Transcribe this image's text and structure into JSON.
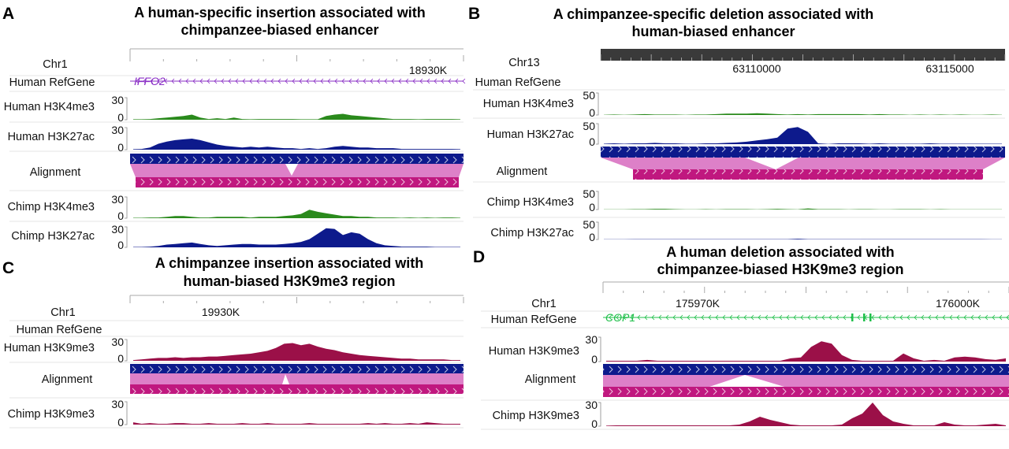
{
  "colors": {
    "h3k4me3": "#2a8a1c",
    "h3k27ac": "#0d1a8c",
    "h3k9me3": "#9b1048",
    "align_human": "#0d1a8c",
    "align_link": "#dd80c8",
    "align_chimp": "#c0187f",
    "gene_iffo2": "#8a2fc6",
    "gene_cop1": "#1fbf4a"
  },
  "panels": {
    "A": {
      "letter": "A",
      "title": [
        "A human-specific insertion associated with",
        "chimpanzee-biased enhancer"
      ],
      "chrom": "Chr1",
      "ruler_labels": [
        "18930K"
      ],
      "refgene_label": "Human RefGene",
      "gene": "IFFO2",
      "alignment_label": "Alignment",
      "tracks": [
        {
          "label": "Human H3K4me3",
          "max": "30",
          "min": "0",
          "mark": "h3k4me3",
          "values": [
            0,
            0,
            1,
            2,
            3,
            4,
            5,
            7,
            3,
            1,
            2,
            1,
            3,
            1,
            0,
            1,
            1,
            1,
            1,
            1,
            0,
            0,
            0,
            5,
            7,
            8,
            6,
            5,
            4,
            3,
            2,
            1,
            1,
            1,
            0,
            1,
            1,
            1,
            1,
            0
          ]
        },
        {
          "label": "Human H3K27ac",
          "max": "30",
          "min": "0",
          "mark": "h3k27ac",
          "values": [
            0,
            1,
            3,
            8,
            11,
            13,
            14,
            15,
            13,
            10,
            7,
            5,
            4,
            3,
            4,
            3,
            4,
            3,
            2,
            2,
            1,
            2,
            1,
            2,
            4,
            5,
            4,
            3,
            3,
            2,
            2,
            2,
            1,
            1,
            1,
            1,
            1,
            1,
            1,
            0
          ]
        },
        {
          "label": "Chimp H3K4me3",
          "max": "30",
          "min": "0",
          "mark": "h3k4me3",
          "values": [
            0,
            0,
            1,
            1,
            2,
            3,
            3,
            2,
            1,
            1,
            2,
            2,
            2,
            2,
            1,
            2,
            2,
            2,
            3,
            4,
            6,
            12,
            9,
            7,
            5,
            3,
            3,
            2,
            2,
            1,
            1,
            1,
            0,
            1,
            0,
            1,
            0,
            1,
            1,
            0
          ]
        },
        {
          "label": "Chimp H3K27ac",
          "max": "30",
          "min": "0",
          "mark": "h3k27ac",
          "values": [
            0,
            0,
            1,
            2,
            4,
            5,
            6,
            7,
            5,
            3,
            2,
            3,
            4,
            5,
            5,
            4,
            4,
            4,
            5,
            6,
            8,
            12,
            20,
            28,
            27,
            18,
            22,
            20,
            12,
            6,
            3,
            2,
            1,
            1,
            1,
            1,
            0,
            0,
            0,
            0
          ]
        }
      ]
    },
    "B": {
      "letter": "B",
      "title": [
        "A chimpanzee-specific deletion associated with",
        "human-biased enhancer"
      ],
      "chrom": "Chr13",
      "ruler_labels": [
        "63110000",
        "63115000"
      ],
      "refgene_label": "Human RefGene",
      "alignment_label": "Alignment",
      "tracks": [
        {
          "label": "Human H3K4me3",
          "max": "50",
          "min": "0",
          "mark": "h3k4me3",
          "values": [
            0,
            1,
            0,
            1,
            2,
            1,
            1,
            1,
            0,
            1,
            1,
            2,
            3,
            3,
            3,
            4,
            3,
            2,
            1,
            2,
            1,
            2,
            2,
            2,
            2,
            2,
            1,
            2,
            1,
            1,
            0,
            1,
            0,
            1,
            0,
            1,
            0,
            0,
            1,
            0
          ]
        },
        {
          "label": "Human H3K27ac",
          "max": "50",
          "min": "0",
          "mark": "h3k27ac",
          "values": [
            1,
            2,
            1,
            2,
            2,
            3,
            2,
            2,
            1,
            1,
            2,
            2,
            3,
            4,
            6,
            9,
            12,
            16,
            38,
            42,
            30,
            2,
            0,
            2,
            2,
            2,
            1,
            2,
            1,
            1,
            1,
            1,
            2,
            1,
            1,
            1,
            1,
            1,
            1,
            1
          ]
        },
        {
          "label": "Chimp H3K4me3",
          "max": "50",
          "min": "0",
          "mark": "h3k4me3",
          "values": [
            0,
            0,
            0,
            1,
            1,
            2,
            2,
            1,
            0,
            0,
            1,
            0,
            1,
            1,
            1,
            0,
            1,
            2,
            1,
            0,
            3,
            1,
            1,
            1,
            0,
            1,
            1,
            0,
            0,
            1,
            1,
            1,
            0,
            1,
            0,
            0,
            0,
            0,
            0,
            0
          ]
        },
        {
          "label": "Chimp H3K27ac",
          "max": "50",
          "min": "0",
          "mark": "h3k27ac",
          "values": [
            0,
            0,
            0,
            1,
            1,
            1,
            1,
            1,
            1,
            1,
            1,
            1,
            1,
            1,
            1,
            1,
            1,
            1,
            1,
            2,
            1,
            1,
            1,
            1,
            1,
            1,
            1,
            1,
            1,
            1,
            1,
            1,
            1,
            1,
            1,
            1,
            1,
            1,
            0,
            0
          ]
        }
      ]
    },
    "C": {
      "letter": "C",
      "title": [
        "A chimpanzee insertion associated with",
        "human-biased H3K9me3 region"
      ],
      "chrom": "Chr1",
      "ruler_labels": [
        "19930K"
      ],
      "refgene_label": "Human RefGene",
      "alignment_label": "Alignment",
      "tracks": [
        {
          "label": "Human H3K9me3",
          "max": "30",
          "min": "0",
          "mark": "h3k9me3",
          "values": [
            1,
            2,
            3,
            4,
            4,
            5,
            4,
            5,
            5,
            6,
            6,
            7,
            8,
            9,
            10,
            12,
            14,
            18,
            24,
            25,
            22,
            24,
            20,
            17,
            15,
            12,
            10,
            8,
            7,
            6,
            5,
            4,
            3,
            3,
            2,
            2,
            2,
            2,
            1,
            1
          ]
        },
        {
          "label": "Chimp H3K9me3",
          "max": "30",
          "min": "0",
          "mark": "h3k9me3",
          "values": [
            3,
            1,
            2,
            1,
            1,
            2,
            2,
            1,
            1,
            2,
            1,
            1,
            1,
            2,
            1,
            1,
            2,
            1,
            1,
            1,
            1,
            2,
            1,
            1,
            1,
            1,
            1,
            1,
            2,
            1,
            2,
            1,
            1,
            2,
            1,
            3,
            2,
            1,
            1,
            1
          ]
        }
      ]
    },
    "D": {
      "letter": "D",
      "title": [
        "A human deletion associated with",
        "chimpanzee-biased H3K9me3 region"
      ],
      "chrom": "Chr1",
      "ruler_labels": [
        "175970K",
        "176000K"
      ],
      "refgene_label": "Human RefGene",
      "gene": "COP1",
      "alignment_label": "Alignment",
      "tracks": [
        {
          "label": "Human H3K9me3",
          "max": "30",
          "min": "0",
          "mark": "h3k9me3",
          "values": [
            1,
            1,
            1,
            1,
            2,
            1,
            1,
            1,
            1,
            1,
            1,
            1,
            1,
            1,
            1,
            1,
            1,
            1,
            4,
            5,
            18,
            25,
            22,
            8,
            2,
            1,
            1,
            1,
            1,
            10,
            4,
            1,
            2,
            1,
            5,
            6,
            5,
            3,
            2,
            4
          ]
        },
        {
          "label": "Chimp H3K9me3",
          "max": "30",
          "min": "0",
          "mark": "h3k9me3",
          "values": [
            0,
            1,
            1,
            1,
            1,
            1,
            1,
            1,
            1,
            1,
            1,
            1,
            1,
            2,
            6,
            12,
            8,
            5,
            2,
            1,
            1,
            1,
            1,
            2,
            10,
            16,
            30,
            14,
            6,
            3,
            1,
            1,
            1,
            5,
            2,
            1,
            1,
            2,
            3,
            1
          ]
        }
      ]
    }
  }
}
